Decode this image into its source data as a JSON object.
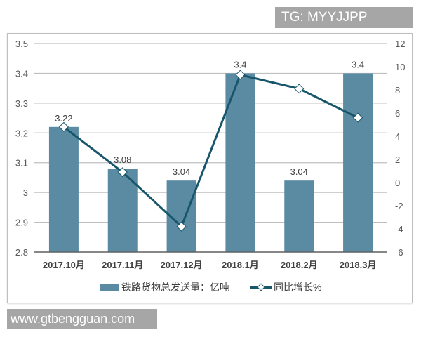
{
  "watermarks": {
    "top": "TG: MYYJJPP",
    "bottom": "www.gtbengguan.com"
  },
  "legend": {
    "bar_label": "铁路货物总发送量：亿吨",
    "line_label": "同比增长%"
  },
  "colors": {
    "bar": "#5b8ba3",
    "line": "#17566b",
    "grid": "#bfbfbf",
    "watermark_bg": "#a6a6a6"
  },
  "chart_data": {
    "type": "bar+line",
    "title": "",
    "categories": [
      "2017.10月",
      "2017.11月",
      "2017.12月",
      "2018.1月",
      "2018.2月",
      "2018.3月"
    ],
    "series": [
      {
        "name": "铁路货物总发送量：亿吨",
        "type": "bar",
        "axis": "left",
        "values": [
          3.22,
          3.08,
          3.04,
          3.4,
          3.04,
          3.4
        ],
        "data_labels": [
          "3.22",
          "3.08",
          "3.04",
          "3.4",
          "3.04",
          "3.4"
        ]
      },
      {
        "name": "同比增长%",
        "type": "line",
        "axis": "right",
        "marker": "diamond",
        "values": [
          4.8,
          0.9,
          -3.8,
          9.3,
          8.1,
          5.6
        ]
      }
    ],
    "left_axis": {
      "ylim": [
        2.8,
        3.5
      ],
      "ticks": [
        "3.5",
        "3.4",
        "3.3",
        "3.2",
        "3.1",
        "3",
        "2.9",
        "2.8"
      ]
    },
    "right_axis": {
      "ylim": [
        -6,
        12
      ],
      "ticks": [
        "12",
        "10",
        "8",
        "6",
        "4",
        "2",
        "0",
        "-2",
        "-4",
        "-6"
      ]
    },
    "xlabel": "",
    "ylabel": "",
    "grid": true,
    "legend_position": "bottom"
  }
}
